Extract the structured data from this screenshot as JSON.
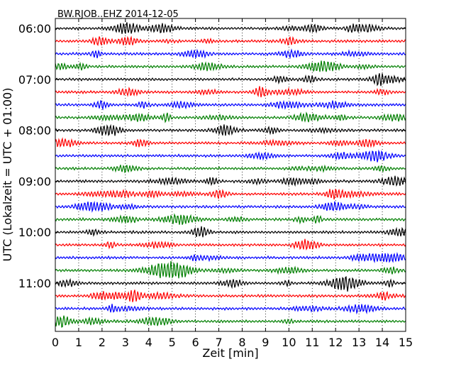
{
  "chart_data": {
    "type": "line",
    "title": "BW.RJOB..EHZ 2014-12-05",
    "xlabel": "Zeit  [min]",
    "ylabel": "UTC (Lokalzeit = UTC + 01:00)",
    "xlim": [
      0,
      15
    ],
    "xticks": [
      "0",
      "1",
      "2",
      "3",
      "4",
      "5",
      "6",
      "7",
      "8",
      "9",
      "10",
      "11",
      "12",
      "13",
      "14",
      "15"
    ],
    "ytick_labels": [
      "06:00",
      "07:00",
      "08:00",
      "09:00",
      "10:00",
      "11:00"
    ],
    "grid": "vertical dotted",
    "trace_interval_min": 15,
    "first_trace_start": "06:00",
    "trace_count": 24,
    "trace_colors": [
      "#000000",
      "#ff0000",
      "#0000ff",
      "#007f00"
    ]
  }
}
